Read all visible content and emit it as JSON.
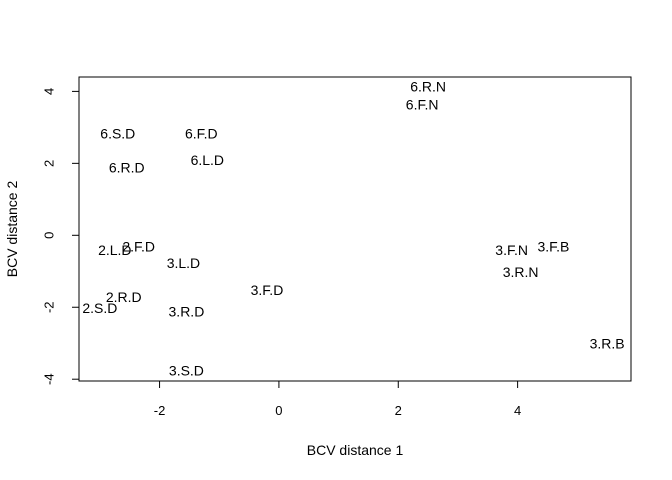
{
  "chart_data": {
    "type": "scatter",
    "title": "",
    "xlabel": "BCV distance 1",
    "ylabel": "BCV distance 2",
    "xlim": [
      -3.35,
      5.9
    ],
    "ylim": [
      -4.05,
      4.4
    ],
    "xticks": [
      -2,
      0,
      2,
      4
    ],
    "yticks": [
      -4,
      -2,
      0,
      2,
      4
    ],
    "grid": false,
    "points": [
      {
        "label": "6.R.N",
        "x": 2.5,
        "y": 4.1
      },
      {
        "label": "6.F.N",
        "x": 2.4,
        "y": 3.6
      },
      {
        "label": "6.S.D",
        "x": -2.7,
        "y": 2.8
      },
      {
        "label": "6.F.D",
        "x": -1.3,
        "y": 2.8
      },
      {
        "label": "6.L.D",
        "x": -1.2,
        "y": 2.05
      },
      {
        "label": "6.R.D",
        "x": -2.55,
        "y": 1.85
      },
      {
        "label": "2.F.D",
        "x": -2.35,
        "y": -0.35
      },
      {
        "label": "2.L.D",
        "x": -2.75,
        "y": -0.45
      },
      {
        "label": "3.F.B",
        "x": 4.6,
        "y": -0.35
      },
      {
        "label": "3.F.N",
        "x": 3.9,
        "y": -0.45
      },
      {
        "label": "3.L.D",
        "x": -1.6,
        "y": -0.8
      },
      {
        "label": "3.R.N",
        "x": 4.05,
        "y": -1.05
      },
      {
        "label": "2.R.D",
        "x": -2.6,
        "y": -1.75
      },
      {
        "label": "3.F.D",
        "x": -0.2,
        "y": -1.55
      },
      {
        "label": "2.S.D",
        "x": -3.0,
        "y": -2.05
      },
      {
        "label": "3.R.D",
        "x": -1.55,
        "y": -2.15
      },
      {
        "label": "3.R.B",
        "x": 5.5,
        "y": -3.05
      },
      {
        "label": "3.S.D",
        "x": -1.55,
        "y": -3.8
      }
    ]
  }
}
